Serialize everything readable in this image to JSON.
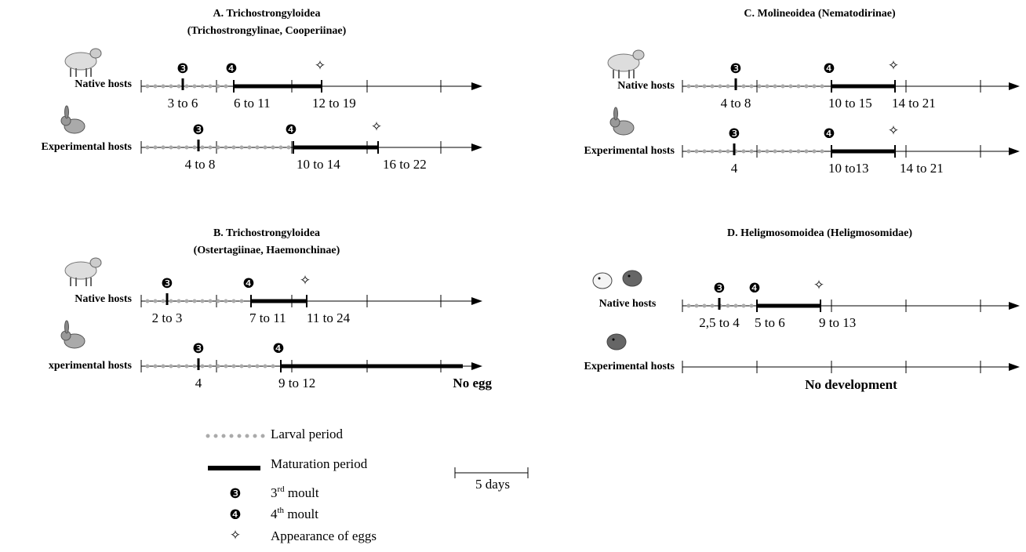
{
  "panels": [
    {
      "title": [
        "A. Trichostrongyloidea",
        "(Trichostrongylinae, Cooperiinae)"
      ],
      "rows": [
        {
          "host": "Native hosts",
          "moult3": "3 to 6",
          "moult4": "6 to 11",
          "eggs": "12 to 19"
        },
        {
          "host": "Experimental hosts",
          "moult3": "4 to 8",
          "moult4": "10 to 14",
          "eggs": "16 to 22"
        }
      ]
    },
    {
      "title": [
        "B. Trichostrongyloidea",
        "(Ostertagiinae, Haemonchinae)"
      ],
      "rows": [
        {
          "host": "Native hosts",
          "moult3": "2 to 3",
          "moult4": "7 to 11",
          "eggs": "11 to 24"
        },
        {
          "host": "xperimental hosts",
          "moult3": "4",
          "moult4": "9 to 12",
          "eggs": "No egg"
        }
      ]
    },
    {
      "title": [
        "C. Molineoidea (Nematodirinae)"
      ],
      "rows": [
        {
          "host": "Native hosts",
          "moult3": "4 to 8",
          "moult4": "10 to 15",
          "eggs": "14 to 21"
        },
        {
          "host": "Experimental hosts",
          "moult3": "4",
          "moult4": "10 to13",
          "eggs": "14 to 21"
        }
      ]
    },
    {
      "title": [
        "D. Heligmosomoidea (Heligmosomidae)"
      ],
      "rows": [
        {
          "host": "Native hosts",
          "moult3": "2,5 to 4",
          "moult4": "5 to 6",
          "eggs": "9 to 13"
        },
        {
          "host": "Experimental hosts",
          "note": "No development"
        }
      ]
    }
  ],
  "symbols": {
    "moult3": "❸",
    "moult4": "❹",
    "eggs": "✧"
  },
  "legend": {
    "larval": "Larval period",
    "maturation": "Maturation period",
    "moult3": {
      "number": "3",
      "sup": "rd",
      "text": " moult"
    },
    "moult4": {
      "number": "4",
      "sup": "th",
      "text": " moult"
    },
    "eggs": "Appearance of eggs"
  },
  "scale": "5 days"
}
